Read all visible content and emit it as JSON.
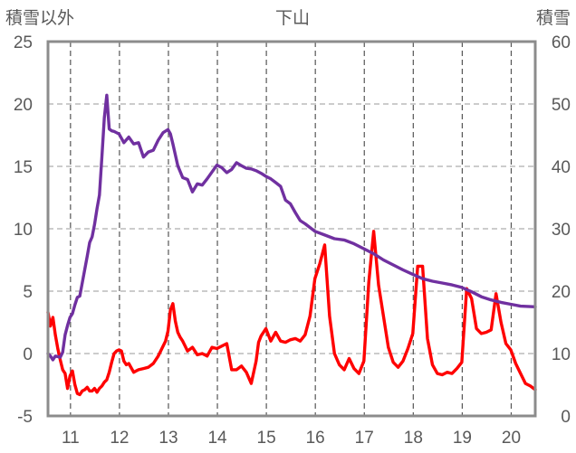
{
  "chart_data": {
    "type": "line",
    "title": "下山",
    "y_left_label": "積雪以外",
    "y_right_label": "積雪",
    "xlim": [
      10.55,
      20.5
    ],
    "x_ticks": [
      11,
      12,
      13,
      14,
      15,
      16,
      17,
      18,
      19,
      20
    ],
    "y_left": {
      "ylim": [
        -5,
        25
      ],
      "ticks": [
        -5,
        0,
        5,
        10,
        15,
        20,
        25
      ]
    },
    "y_right": {
      "ylim": [
        0,
        60
      ],
      "ticks": [
        0,
        10,
        20,
        30,
        40,
        50,
        60
      ]
    },
    "grid": true,
    "series": [
      {
        "axis": "left",
        "color": "#ff0000",
        "x": [
          10.55,
          10.6,
          10.65,
          10.7,
          10.75,
          10.8,
          10.85,
          10.9,
          10.95,
          11.0,
          11.05,
          11.1,
          11.15,
          11.2,
          11.25,
          11.3,
          11.35,
          11.4,
          11.45,
          11.5,
          11.55,
          11.6,
          11.65,
          11.7,
          11.75,
          11.8,
          11.85,
          11.9,
          11.95,
          12.0,
          12.05,
          12.1,
          12.15,
          12.2,
          12.3,
          12.35,
          12.4,
          12.5,
          12.6,
          12.7,
          12.8,
          12.9,
          12.95,
          13.0,
          13.05,
          13.1,
          13.15,
          13.2,
          13.25,
          13.3,
          13.4,
          13.5,
          13.6,
          13.7,
          13.8,
          13.9,
          14.0,
          14.1,
          14.2,
          14.3,
          14.4,
          14.5,
          14.6,
          14.7,
          14.8,
          14.85,
          14.9,
          15.0,
          15.1,
          15.2,
          15.3,
          15.4,
          15.5,
          15.6,
          15.7,
          15.8,
          15.9,
          16.0,
          16.1,
          16.2,
          16.3,
          16.4,
          16.5,
          16.6,
          16.7,
          16.8,
          16.9,
          17.0,
          17.1,
          17.2,
          17.3,
          17.4,
          17.5,
          17.6,
          17.7,
          17.8,
          17.9,
          18.0,
          18.1,
          18.2,
          18.3,
          18.4,
          18.5,
          18.6,
          18.7,
          18.8,
          18.9,
          19.0,
          19.1,
          19.2,
          19.3,
          19.4,
          19.5,
          19.6,
          19.7,
          19.8,
          19.9,
          20.0,
          20.1,
          20.2,
          20.3,
          20.4,
          20.5
        ],
        "values": [
          3.3,
          2.2,
          2.9,
          1.5,
          0.4,
          -0.5,
          -1.3,
          -1.6,
          -2.8,
          -1.8,
          -1.4,
          -2.5,
          -3.2,
          -3.3,
          -3.0,
          -2.9,
          -2.7,
          -3.0,
          -3.0,
          -2.8,
          -3.1,
          -2.8,
          -2.6,
          -2.3,
          -2.1,
          -1.5,
          -0.7,
          0.0,
          0.2,
          0.3,
          0.2,
          -0.6,
          -0.9,
          -0.8,
          -1.5,
          -1.4,
          -1.3,
          -1.2,
          -1.1,
          -0.8,
          -0.2,
          0.6,
          1.0,
          1.8,
          3.5,
          4.0,
          2.6,
          1.7,
          1.3,
          1.0,
          0.2,
          0.5,
          -0.1,
          0.0,
          -0.2,
          0.5,
          0.4,
          0.6,
          0.8,
          -1.3,
          -1.3,
          -1.0,
          -1.5,
          -2.4,
          -0.6,
          0.9,
          1.4,
          2.0,
          1.0,
          1.7,
          1.0,
          0.9,
          1.1,
          1.2,
          1.0,
          1.5,
          3.0,
          6.0,
          7.2,
          8.7,
          3.0,
          0.0,
          -0.9,
          -1.3,
          -0.4,
          -1.2,
          -1.6,
          -0.6,
          5.7,
          9.8,
          5.5,
          3.0,
          0.5,
          -0.7,
          -1.1,
          -0.6,
          0.4,
          1.6,
          7.0,
          7.0,
          1.2,
          -0.9,
          -1.6,
          -1.7,
          -1.5,
          -1.6,
          -1.2,
          -0.7,
          5.2,
          4.4,
          2.0,
          1.6,
          1.7,
          1.9,
          4.8,
          2.5,
          0.8,
          0.3,
          -0.8,
          -1.6,
          -2.4,
          -2.6,
          -2.9
        ]
      },
      {
        "axis": "right",
        "color": "#7030a0",
        "x": [
          10.55,
          10.6,
          10.65,
          10.7,
          10.75,
          10.8,
          10.85,
          10.9,
          10.95,
          11.0,
          11.05,
          11.1,
          11.15,
          11.2,
          11.25,
          11.3,
          11.35,
          11.4,
          11.45,
          11.5,
          11.55,
          11.6,
          11.65,
          11.7,
          11.75,
          11.8,
          11.85,
          11.9,
          12.0,
          12.1,
          12.2,
          12.3,
          12.4,
          12.5,
          12.6,
          12.7,
          12.8,
          12.9,
          13.0,
          13.05,
          13.1,
          13.2,
          13.3,
          13.4,
          13.5,
          13.6,
          13.7,
          13.8,
          13.9,
          14.0,
          14.1,
          14.2,
          14.3,
          14.4,
          14.5,
          14.6,
          14.7,
          14.8,
          14.9,
          15.0,
          15.1,
          15.2,
          15.3,
          15.4,
          15.5,
          15.6,
          15.7,
          15.8,
          15.9,
          16.0,
          16.2,
          16.4,
          16.6,
          16.8,
          17.0,
          17.2,
          17.4,
          17.6,
          17.8,
          18.0,
          18.2,
          18.4,
          18.6,
          18.8,
          19.0,
          19.2,
          19.4,
          19.6,
          19.8,
          20.0,
          20.2,
          20.5
        ],
        "values": [
          10.0,
          9.6,
          9.0,
          9.6,
          9.5,
          9.4,
          10.2,
          13.0,
          14.5,
          15.8,
          16.4,
          17.8,
          19.0,
          19.2,
          21.3,
          23.5,
          25.6,
          27.8,
          28.7,
          30.7,
          33.2,
          35.4,
          41.5,
          47.8,
          51.4,
          46.0,
          45.7,
          45.6,
          45.2,
          43.8,
          44.7,
          43.6,
          43.8,
          41.5,
          42.3,
          42.6,
          44.2,
          45.4,
          45.9,
          45.2,
          43.6,
          40.1,
          38.2,
          37.9,
          35.9,
          37.2,
          37.0,
          38.0,
          39.1,
          40.2,
          39.8,
          39.0,
          39.5,
          40.6,
          40.1,
          39.7,
          39.6,
          39.3,
          38.9,
          38.4,
          38.0,
          37.4,
          36.8,
          34.6,
          34.0,
          32.6,
          31.3,
          30.8,
          30.2,
          29.6,
          29.0,
          28.4,
          28.2,
          27.6,
          26.8,
          26.0,
          25.0,
          24.2,
          23.4,
          22.7,
          22.0,
          21.6,
          21.3,
          21.0,
          20.6,
          19.9,
          19.1,
          18.6,
          18.2,
          17.9,
          17.6,
          17.5
        ]
      }
    ]
  }
}
